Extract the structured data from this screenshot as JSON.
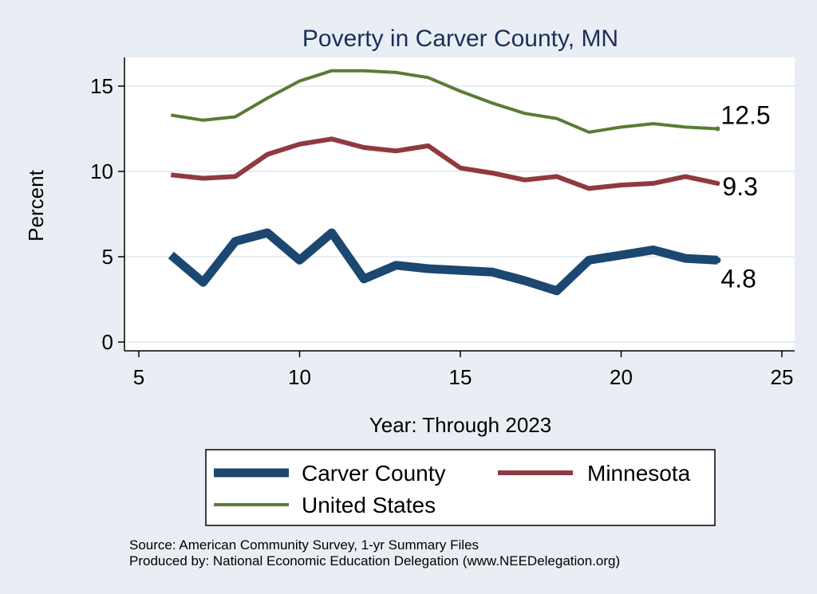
{
  "chart_data": {
    "type": "line",
    "title": "Poverty in Carver County, MN",
    "xlabel": "Year: Through 2023",
    "ylabel": "Percent",
    "xlim": [
      5,
      25
    ],
    "ylim": [
      0,
      16.5
    ],
    "xticks": [
      "5",
      "10",
      "15",
      "20",
      "25"
    ],
    "yticks": [
      "0",
      "5",
      "10",
      "15"
    ],
    "grid": true,
    "legend_position": "bottom",
    "series": [
      {
        "name": "Carver County",
        "color": "#1c4770",
        "x": [
          6,
          7,
          8,
          9,
          10,
          11,
          12,
          13,
          14,
          15,
          16,
          17,
          18,
          19,
          20,
          21,
          22,
          23
        ],
        "y": [
          5.1,
          3.5,
          5.9,
          6.4,
          4.8,
          6.4,
          3.7,
          4.5,
          4.3,
          4.2,
          4.1,
          3.6,
          3.0,
          4.8,
          5.1,
          5.4,
          4.9,
          4.8
        ],
        "end_label": "4.8"
      },
      {
        "name": "Minnesota",
        "color": "#8f3a40",
        "x": [
          6,
          7,
          8,
          9,
          10,
          11,
          12,
          13,
          14,
          15,
          16,
          17,
          18,
          19,
          20,
          21,
          22,
          23
        ],
        "y": [
          9.8,
          9.6,
          9.7,
          11.0,
          11.6,
          11.9,
          11.4,
          11.2,
          11.5,
          10.2,
          9.9,
          9.5,
          9.7,
          9.0,
          9.2,
          9.3,
          9.7,
          9.3
        ],
        "end_label": "9.3"
      },
      {
        "name": "United States",
        "color": "#5a7b35",
        "x": [
          6,
          7,
          8,
          9,
          10,
          11,
          12,
          13,
          14,
          15,
          16,
          17,
          18,
          19,
          20,
          21,
          22,
          23
        ],
        "y": [
          13.3,
          13.0,
          13.2,
          14.3,
          15.3,
          15.9,
          15.9,
          15.8,
          15.5,
          14.7,
          14.0,
          13.4,
          13.1,
          12.3,
          12.6,
          12.8,
          12.6,
          12.5
        ],
        "end_label": "12.5"
      }
    ]
  },
  "source_lines": [
    "Source: American Community Survey, 1-yr Summary Files",
    "Produced by: National Economic Education Delegation (www.NEEDelegation.org)"
  ]
}
